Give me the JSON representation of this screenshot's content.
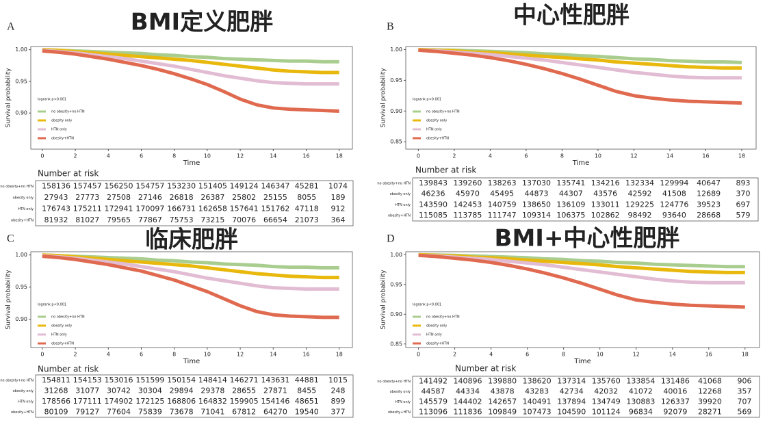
{
  "chart_data": [
    {
      "type": "line",
      "label": "A",
      "title": "BMI定义肥胖",
      "xlabel": "Time",
      "ylabel": "Survival probability",
      "annotation": "logrank p<0.001",
      "x": [
        0,
        1,
        2,
        3,
        4,
        5,
        6,
        7,
        8,
        9,
        10,
        11,
        12,
        13,
        14,
        15,
        16,
        17,
        18
      ],
      "xlim": [
        -0.7,
        18.8
      ],
      "xticks": [
        0,
        2,
        4,
        6,
        8,
        10,
        12,
        14,
        16,
        18
      ],
      "ylim": [
        0.843,
        1.005
      ],
      "yticks": [
        {
          "value": 0.9,
          "label": "0.90"
        },
        0.95,
        {
          "value": 1,
          "label": "1.00"
        }
      ],
      "series": [
        {
          "name": "no obesity+no HTN",
          "color": "#a9cd8f",
          "values": [
            1,
            0.999,
            0.998,
            0.997,
            0.996,
            0.995,
            0.994,
            0.992,
            0.991,
            0.989,
            0.988,
            0.986,
            0.985,
            0.984,
            0.983,
            0.982,
            0.982,
            0.981,
            0.981
          ]
        },
        {
          "name": "obesity only",
          "color": "#e8b80c",
          "values": [
            1,
            0.999,
            0.997,
            0.995,
            0.993,
            0.991,
            0.989,
            0.987,
            0.985,
            0.983,
            0.98,
            0.977,
            0.974,
            0.971,
            0.968,
            0.966,
            0.965,
            0.964,
            0.964
          ]
        },
        {
          "name": "HTN only",
          "color": "#e2bcd3",
          "values": [
            0.999,
            0.997,
            0.995,
            0.992,
            0.989,
            0.986,
            0.982,
            0.978,
            0.974,
            0.969,
            0.964,
            0.959,
            0.955,
            0.951,
            0.948,
            0.947,
            0.946,
            0.946,
            0.946
          ]
        },
        {
          "name": "obesity+HTN",
          "color": "#e06a4f",
          "values": [
            0.998,
            0.996,
            0.993,
            0.989,
            0.985,
            0.98,
            0.975,
            0.969,
            0.962,
            0.954,
            0.945,
            0.934,
            0.922,
            0.913,
            0.908,
            0.906,
            0.905,
            0.904,
            0.903
          ]
        }
      ],
      "risk_table": {
        "title": "Number at risk",
        "rows": [
          [
            158136,
            157457,
            156250,
            154757,
            153230,
            151405,
            149124,
            146347,
            45281,
            1074
          ],
          [
            27943,
            27773,
            27508,
            27146,
            26818,
            26387,
            25802,
            25155,
            8055,
            189
          ],
          [
            176743,
            175211,
            172941,
            170097,
            166731,
            162658,
            157641,
            151762,
            47118,
            912
          ],
          [
            81932,
            81027,
            79565,
            77867,
            75753,
            73215,
            70076,
            66654,
            21073,
            364
          ]
        ]
      }
    },
    {
      "type": "line",
      "label": "B",
      "title": "中心性肥胖",
      "xlabel": "Time",
      "ylabel": "Survival probability",
      "annotation": "logrank p<0.001",
      "x": [
        0,
        1,
        2,
        3,
        4,
        5,
        6,
        7,
        8,
        9,
        10,
        11,
        12,
        13,
        14,
        15,
        16,
        17,
        18
      ],
      "xlim": [
        -0.7,
        18.8
      ],
      "xticks": [
        0,
        2,
        4,
        6,
        8,
        10,
        12,
        14,
        16,
        18
      ],
      "ylim": [
        0.838,
        1.005
      ],
      "yticks": [
        0.85,
        {
          "value": 0.9,
          "label": "0.90"
        },
        0.95,
        {
          "value": 1,
          "label": "1.00"
        }
      ],
      "series": [
        {
          "name": "no obesity+no HTN",
          "color": "#a9cd8f",
          "values": [
            1,
            0.9995,
            0.999,
            0.998,
            0.997,
            0.996,
            0.995,
            0.993,
            0.992,
            0.99,
            0.989,
            0.987,
            0.985,
            0.984,
            0.982,
            0.981,
            0.98,
            0.98,
            0.979
          ]
        },
        {
          "name": "obesity only",
          "color": "#e8b80c",
          "values": [
            1,
            0.999,
            0.998,
            0.996,
            0.995,
            0.993,
            0.991,
            0.989,
            0.987,
            0.985,
            0.983,
            0.98,
            0.978,
            0.976,
            0.974,
            0.972,
            0.971,
            0.97,
            0.97
          ]
        },
        {
          "name": "HTN only",
          "color": "#e2bcd3",
          "values": [
            0.999,
            0.998,
            0.996,
            0.994,
            0.992,
            0.989,
            0.986,
            0.983,
            0.979,
            0.975,
            0.971,
            0.967,
            0.963,
            0.96,
            0.957,
            0.955,
            0.954,
            0.954,
            0.954
          ]
        },
        {
          "name": "obesity+HTN",
          "color": "#e06a4f",
          "values": [
            0.999,
            0.997,
            0.994,
            0.991,
            0.987,
            0.982,
            0.976,
            0.969,
            0.961,
            0.952,
            0.942,
            0.932,
            0.925,
            0.921,
            0.918,
            0.916,
            0.915,
            0.914,
            0.913
          ]
        }
      ],
      "risk_table": {
        "title": "Number at risk",
        "rows": [
          [
            139843,
            139260,
            138263,
            137030,
            135741,
            134216,
            132334,
            129994,
            40647,
            893
          ],
          [
            46236,
            45970,
            45495,
            44873,
            44307,
            43576,
            42592,
            41508,
            12689,
            370
          ],
          [
            143590,
            142453,
            140759,
            138650,
            136109,
            133011,
            129225,
            124776,
            39523,
            697
          ],
          [
            115085,
            113785,
            111747,
            109314,
            106375,
            102862,
            98492,
            93640,
            28668,
            579
          ]
        ]
      }
    },
    {
      "type": "line",
      "label": "C",
      "title": "临床肥胖",
      "xlabel": "Time",
      "ylabel": "Survival probability",
      "annotation": "logrank p<0.001",
      "x": [
        0,
        1,
        2,
        3,
        4,
        5,
        6,
        7,
        8,
        9,
        10,
        11,
        12,
        13,
        14,
        15,
        16,
        17,
        18
      ],
      "xlim": [
        -0.7,
        18.8
      ],
      "xticks": [
        0,
        2,
        4,
        6,
        8,
        10,
        12,
        14,
        16,
        18
      ],
      "ylim": [
        0.856,
        1.005
      ],
      "yticks": [
        {
          "value": 0.9,
          "label": "0.90"
        },
        0.95,
        {
          "value": 1,
          "label": "1.00"
        }
      ],
      "series": [
        {
          "name": "no obesity+no HTN",
          "color": "#a9cd8f",
          "values": [
            1,
            0.999,
            0.998,
            0.997,
            0.996,
            0.995,
            0.994,
            0.992,
            0.991,
            0.989,
            0.988,
            0.986,
            0.985,
            0.984,
            0.982,
            0.981,
            0.981,
            0.98,
            0.98
          ]
        },
        {
          "name": "obesity only",
          "color": "#e8b80c",
          "values": [
            1,
            0.999,
            0.997,
            0.995,
            0.993,
            0.991,
            0.989,
            0.987,
            0.985,
            0.983,
            0.98,
            0.977,
            0.974,
            0.971,
            0.969,
            0.967,
            0.966,
            0.965,
            0.965
          ]
        },
        {
          "name": "HTN only",
          "color": "#e2bcd3",
          "values": [
            0.999,
            0.997,
            0.995,
            0.992,
            0.989,
            0.986,
            0.982,
            0.978,
            0.974,
            0.969,
            0.964,
            0.96,
            0.956,
            0.952,
            0.949,
            0.948,
            0.947,
            0.947,
            0.947
          ]
        },
        {
          "name": "obesity+HTN",
          "color": "#e06a4f",
          "values": [
            0.998,
            0.996,
            0.993,
            0.989,
            0.985,
            0.98,
            0.975,
            0.968,
            0.961,
            0.952,
            0.943,
            0.932,
            0.921,
            0.912,
            0.907,
            0.905,
            0.904,
            0.903,
            0.903
          ]
        }
      ],
      "risk_table": {
        "title": "Number at risk",
        "rows": [
          [
            154811,
            154153,
            153016,
            151599,
            150154,
            148414,
            146271,
            143631,
            44881,
            1015
          ],
          [
            31268,
            31077,
            30742,
            30304,
            29894,
            29378,
            28655,
            27871,
            8455,
            248
          ],
          [
            178566,
            177111,
            174902,
            172125,
            168806,
            164832,
            159905,
            154146,
            48651,
            899
          ],
          [
            80109,
            79127,
            77604,
            75839,
            73678,
            71041,
            67812,
            64270,
            19540,
            377
          ]
        ]
      }
    },
    {
      "type": "line",
      "label": "D",
      "title": "BMI+中心性肥胖",
      "xlabel": "Time",
      "ylabel": "Survival probability",
      "annotation": "logrank p<0.001",
      "x": [
        0,
        1,
        2,
        3,
        4,
        5,
        6,
        7,
        8,
        9,
        10,
        11,
        12,
        13,
        14,
        15,
        16,
        17,
        18
      ],
      "xlim": [
        -0.7,
        18.8
      ],
      "xticks": [
        0,
        2,
        4,
        6,
        8,
        10,
        12,
        14,
        16,
        18
      ],
      "ylim": [
        0.844,
        1.005
      ],
      "yticks": [
        0.85,
        {
          "value": 0.9,
          "label": "0.90"
        },
        0.95,
        {
          "value": 1,
          "label": "1.00"
        }
      ],
      "series": [
        {
          "name": "no obesity+no HTN",
          "color": "#a9cd8f",
          "values": [
            1,
            0.9995,
            0.999,
            0.998,
            0.997,
            0.996,
            0.995,
            0.993,
            0.992,
            0.99,
            0.989,
            0.987,
            0.986,
            0.984,
            0.983,
            0.982,
            0.981,
            0.98,
            0.98
          ]
        },
        {
          "name": "obesity only",
          "color": "#e8b80c",
          "values": [
            1,
            0.999,
            0.998,
            0.996,
            0.995,
            0.993,
            0.991,
            0.989,
            0.987,
            0.985,
            0.983,
            0.98,
            0.978,
            0.976,
            0.974,
            0.972,
            0.971,
            0.97,
            0.97
          ]
        },
        {
          "name": "HTN only",
          "color": "#e2bcd3",
          "values": [
            0.999,
            0.998,
            0.996,
            0.994,
            0.992,
            0.989,
            0.986,
            0.983,
            0.979,
            0.975,
            0.971,
            0.967,
            0.963,
            0.959,
            0.956,
            0.954,
            0.953,
            0.953,
            0.953
          ]
        },
        {
          "name": "obesity+HTN",
          "color": "#e06a4f",
          "values": [
            0.999,
            0.997,
            0.994,
            0.991,
            0.987,
            0.982,
            0.976,
            0.969,
            0.961,
            0.952,
            0.942,
            0.932,
            0.924,
            0.92,
            0.917,
            0.915,
            0.914,
            0.913,
            0.912
          ]
        }
      ],
      "risk_table": {
        "title": "Number at risk",
        "rows": [
          [
            141492,
            140896,
            139880,
            138620,
            137314,
            135760,
            133854,
            131486,
            41068,
            906
          ],
          [
            44587,
            44334,
            43878,
            43283,
            42734,
            42032,
            41072,
            40016,
            12268,
            357
          ],
          [
            145579,
            144402,
            142657,
            140491,
            137894,
            134749,
            130883,
            126337,
            39920,
            707
          ],
          [
            113096,
            111836,
            109849,
            107473,
            104590,
            101124,
            96834,
            92079,
            28271,
            569
          ]
        ]
      }
    }
  ]
}
